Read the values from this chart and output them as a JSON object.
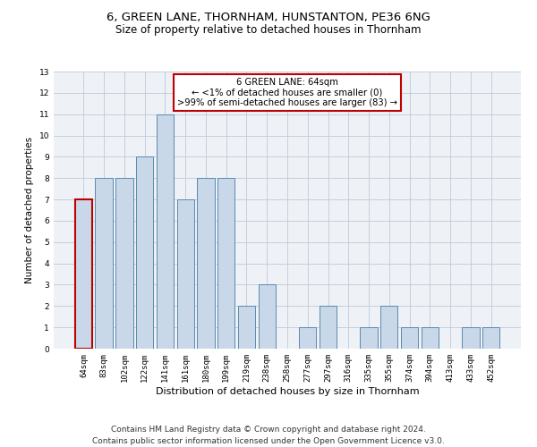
{
  "title_line1": "6, GREEN LANE, THORNHAM, HUNSTANTON, PE36 6NG",
  "title_line2": "Size of property relative to detached houses in Thornham",
  "xlabel": "Distribution of detached houses by size in Thornham",
  "ylabel": "Number of detached properties",
  "categories": [
    "64sqm",
    "83sqm",
    "102sqm",
    "122sqm",
    "141sqm",
    "161sqm",
    "180sqm",
    "199sqm",
    "219sqm",
    "238sqm",
    "258sqm",
    "277sqm",
    "297sqm",
    "316sqm",
    "335sqm",
    "355sqm",
    "374sqm",
    "394sqm",
    "413sqm",
    "433sqm",
    "452sqm"
  ],
  "values": [
    7,
    8,
    8,
    9,
    11,
    7,
    8,
    8,
    2,
    3,
    0,
    1,
    2,
    0,
    1,
    2,
    1,
    1,
    0,
    1,
    1
  ],
  "bar_color": "#c8d8e8",
  "bar_edge_color": "#5a8ab0",
  "highlight_index": 0,
  "highlight_edge_color": "#c00000",
  "annotation_text": "6 GREEN LANE: 64sqm\n← <1% of detached houses are smaller (0)\n>99% of semi-detached houses are larger (83) →",
  "annotation_box_color": "#ffffff",
  "annotation_box_edge": "#c00000",
  "footer_line1": "Contains HM Land Registry data © Crown copyright and database right 2024.",
  "footer_line2": "Contains public sector information licensed under the Open Government Licence v3.0.",
  "ylim": [
    0,
    13
  ],
  "yticks": [
    0,
    1,
    2,
    3,
    4,
    5,
    6,
    7,
    8,
    9,
    10,
    11,
    12,
    13
  ],
  "grid_color": "#c0c8d8",
  "bg_color": "#eef2f7",
  "title_fontsize": 9.5,
  "subtitle_fontsize": 8.5,
  "footer_fontsize": 6.5,
  "xlabel_fontsize": 8,
  "ylabel_fontsize": 7.5,
  "tick_fontsize": 6.5,
  "annotation_fontsize": 7.2
}
